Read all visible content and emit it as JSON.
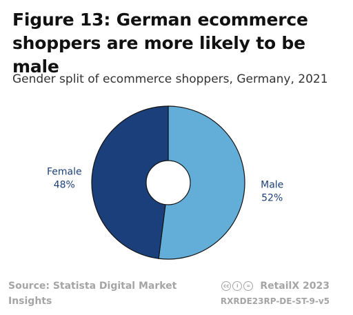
{
  "header": {
    "title": "Figure 13: German ecommerce shoppers are more likely to be male",
    "subtitle": "Gender split of ecommerce shoppers, Germany, 2021"
  },
  "chart_data": {
    "type": "pie",
    "donut": true,
    "slices": [
      {
        "name": "Male",
        "value": 52,
        "label": "52%",
        "color": "#63aed8"
      },
      {
        "name": "Female",
        "value": 48,
        "label": "48%",
        "color": "#1b3f7a"
      }
    ]
  },
  "footer": {
    "source": "Source: Statista Digital Market Insights",
    "brand": "RetailX 2023",
    "code": "RXRDE23RP-DE-ST-9-v5",
    "license_icons": [
      "cc-icon",
      "by-icon",
      "nd-icon"
    ]
  },
  "colors": {
    "label_text": "#1b3f7a",
    "footer_text": "#a5a5a5",
    "slice_border": "#111111"
  }
}
